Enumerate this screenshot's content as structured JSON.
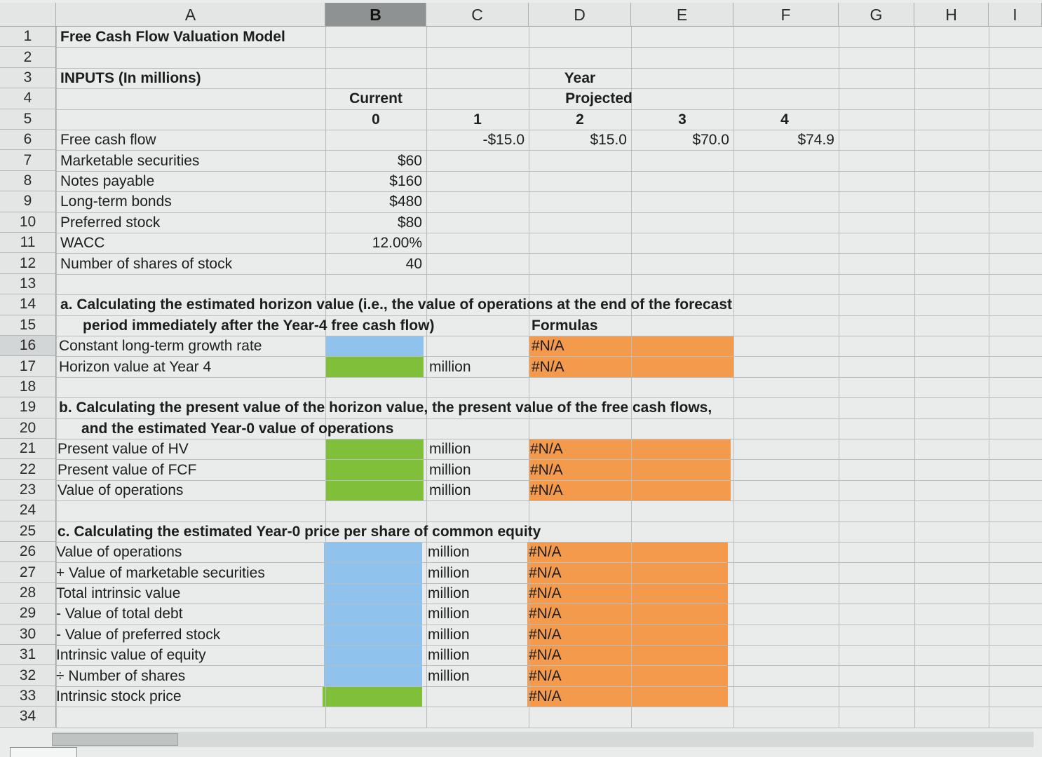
{
  "columns": [
    "A",
    "B",
    "C",
    "D",
    "E",
    "F",
    "G",
    "H",
    "I"
  ],
  "rows": [
    "1",
    "2",
    "3",
    "4",
    "5",
    "6",
    "7",
    "8",
    "9",
    "10",
    "11",
    "12",
    "13",
    "14",
    "15",
    "16",
    "17",
    "18",
    "19",
    "20",
    "21",
    "22",
    "23",
    "24",
    "25",
    "26",
    "27",
    "28",
    "29",
    "30",
    "31",
    "32",
    "33",
    "34"
  ],
  "title": "Free Cash Flow Valuation Model",
  "inputs_label": "INPUTS (In millions)",
  "year_label": "Year",
  "current_label": "Current",
  "projected_label": "Projected",
  "year_numbers": [
    "0",
    "1",
    "2",
    "3",
    "4"
  ],
  "fcf": {
    "label": "Free cash flow",
    "values": [
      "-$15.0",
      "$15.0",
      "$70.0",
      "$74.9"
    ]
  },
  "inputs": [
    {
      "label": "Marketable securities",
      "value": "$60"
    },
    {
      "label": "Notes payable",
      "value": "$160"
    },
    {
      "label": "Long-term bonds",
      "value": "$480"
    },
    {
      "label": "Preferred stock",
      "value": "$80"
    },
    {
      "label": "WACC",
      "value": "12.00%"
    },
    {
      "label": "Number of shares of stock",
      "value": "40"
    }
  ],
  "section_a": {
    "line1": "a. Calculating the estimated horizon value (i.e., the value of operations at the end of the forecast",
    "line2": "period immediately after the Year-4 free cash flow)",
    "formulas_label": "Formulas",
    "items": [
      {
        "label": "Constant long-term growth rate",
        "unit": "",
        "formula": "#N/A"
      },
      {
        "label": "Horizon value at Year 4",
        "unit": "million",
        "formula": "#N/A"
      }
    ]
  },
  "section_b": {
    "line1": "b. Calculating the present value of the horizon value, the present value of the free cash flows,",
    "line2": "and the estimated Year-0 value of operations",
    "items": [
      {
        "label": "Present value of HV",
        "unit": "million",
        "formula": "#N/A"
      },
      {
        "label": "Present value of FCF",
        "unit": "million",
        "formula": "#N/A"
      },
      {
        "label": "Value of operations",
        "unit": "million",
        "formula": "#N/A"
      }
    ]
  },
  "section_c": {
    "line1": "c. Calculating the estimated Year-0 price per share of common equity",
    "items": [
      {
        "label": "Value of operations",
        "unit": "million",
        "formula": "#N/A"
      },
      {
        "label": "+ Value of marketable securities",
        "unit": "million",
        "formula": "#N/A"
      },
      {
        "label": "Total intrinsic value",
        "unit": "million",
        "formula": "#N/A"
      },
      {
        "label": "- Value of total debt",
        "unit": "million",
        "formula": "#N/A"
      },
      {
        "label": "- Value of preferred stock",
        "unit": "million",
        "formula": "#N/A"
      },
      {
        "label": "Intrinsic value of equity",
        "unit": "million",
        "formula": "#N/A"
      },
      {
        "label": "÷ Number of shares",
        "unit": "million",
        "formula": "#N/A"
      },
      {
        "label": "Intrinsic stock price",
        "unit": "",
        "formula": "#N/A"
      }
    ]
  },
  "colors": {
    "input_blue": "#8fc2ec",
    "output_green": "#7fbf3a",
    "formula_orange": "#f49a4c"
  }
}
